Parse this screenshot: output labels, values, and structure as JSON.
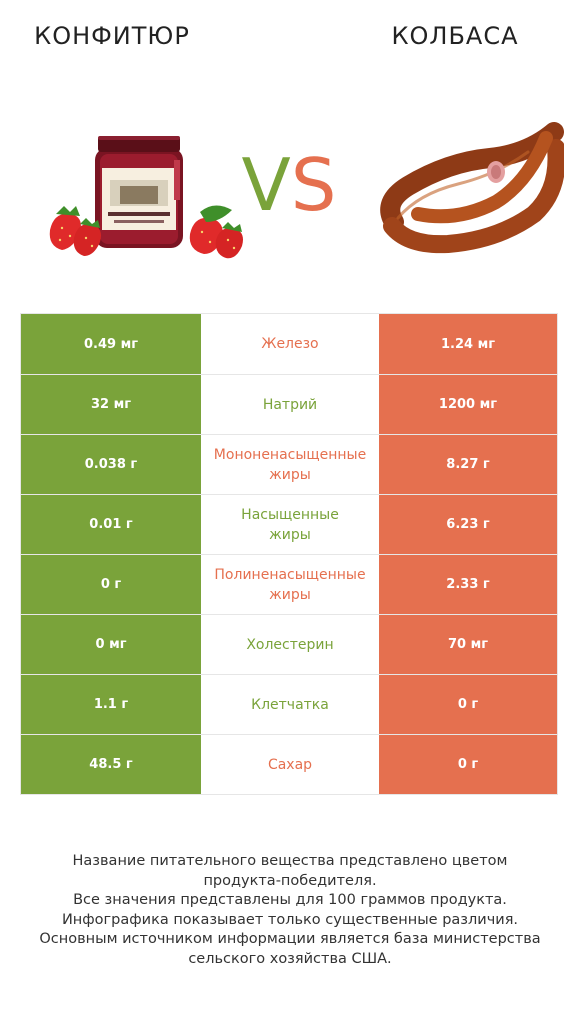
{
  "header": {
    "left_title": "КОНФИТЮР",
    "right_title": "КОЛБАСА",
    "vs_v": "V",
    "vs_s": "S"
  },
  "colors": {
    "left_accent": "#7aa33a",
    "right_accent": "#e5704f"
  },
  "images": {
    "left_icon": "jam-jar-with-strawberries",
    "right_icon": "smoked-sausage-ring"
  },
  "rows": [
    {
      "left": "0.49 мг",
      "label": "Железо",
      "right": "1.24 мг",
      "winner": "right"
    },
    {
      "left": "32 мг",
      "label": "Натрий",
      "right": "1200 мг",
      "winner": "left"
    },
    {
      "left": "0.038 г",
      "label": "Мононенасыщенные\nжиры",
      "right": "8.27 г",
      "winner": "right"
    },
    {
      "left": "0.01 г",
      "label": "Насыщенные\nжиры",
      "right": "6.23 г",
      "winner": "left"
    },
    {
      "left": "0 г",
      "label": "Полиненасыщенные\nжиры",
      "right": "2.33 г",
      "winner": "right"
    },
    {
      "left": "0 мг",
      "label": "Холестерин",
      "right": "70 мг",
      "winner": "left"
    },
    {
      "left": "1.1 г",
      "label": "Клетчатка",
      "right": "0 г",
      "winner": "left"
    },
    {
      "left": "48.5 г",
      "label": "Сахар",
      "right": "0 г",
      "winner": "right"
    }
  ],
  "footnote": {
    "line1": "Название питательного вещества представлено цветом",
    "line2": "продукта-победителя.",
    "line3": "Все значения представлены для 100 граммов продукта.",
    "line4": "Инфографика показывает только существенные различия.",
    "line5": "Основным источником информации является база министерства",
    "line6": "сельского хозяйства США."
  }
}
